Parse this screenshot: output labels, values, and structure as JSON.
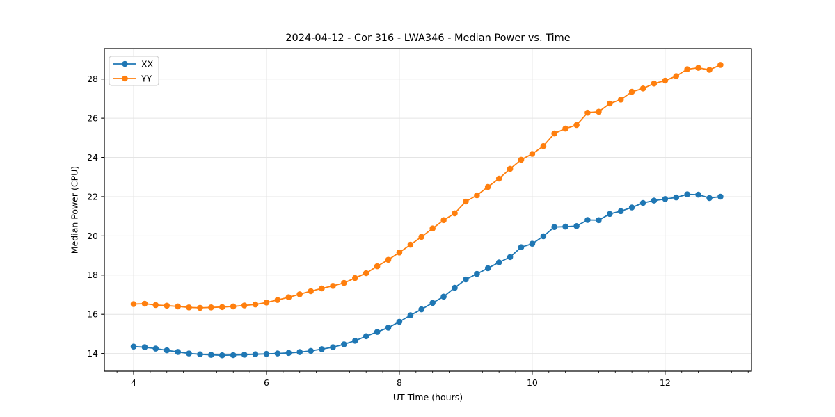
{
  "chart_data": {
    "type": "line",
    "title": "2024-04-12 - Cor 316 - LWA346 - Median Power vs. Time",
    "xlabel": "UT Time (hours)",
    "ylabel": "Median Power (CPU)",
    "xlim": [
      3.56,
      13.3
    ],
    "ylim": [
      13.1,
      29.55
    ],
    "xticks": [
      4,
      6,
      8,
      10,
      12
    ],
    "yticks": [
      14,
      16,
      18,
      20,
      22,
      24,
      26,
      28
    ],
    "x_minor_tick_step": 0.25,
    "grid": true,
    "grid_color": "#e4e4e4",
    "legend_position": "upper-left",
    "x": [
      4.0,
      4.167,
      4.333,
      4.5,
      4.667,
      4.833,
      5.0,
      5.167,
      5.333,
      5.5,
      5.667,
      5.833,
      6.0,
      6.167,
      6.333,
      6.5,
      6.667,
      6.833,
      7.0,
      7.167,
      7.333,
      7.5,
      7.667,
      7.833,
      8.0,
      8.167,
      8.333,
      8.5,
      8.667,
      8.833,
      9.0,
      9.167,
      9.333,
      9.5,
      9.667,
      9.833,
      10.0,
      10.167,
      10.333,
      10.5,
      10.667,
      10.833,
      11.0,
      11.167,
      11.333,
      11.5,
      11.667,
      11.833,
      12.0,
      12.167,
      12.333,
      12.5,
      12.667,
      12.833
    ],
    "series": [
      {
        "name": "XX",
        "color": "#1f77b4",
        "values": [
          14.35,
          14.32,
          14.25,
          14.16,
          14.08,
          14.0,
          13.96,
          13.93,
          13.91,
          13.92,
          13.94,
          13.96,
          13.98,
          14.0,
          14.03,
          14.07,
          14.13,
          14.22,
          14.32,
          14.47,
          14.65,
          14.88,
          15.1,
          15.32,
          15.62,
          15.95,
          16.25,
          16.58,
          16.9,
          17.35,
          17.78,
          18.06,
          18.35,
          18.65,
          18.92,
          19.42,
          19.6,
          19.98,
          20.45,
          20.47,
          20.5,
          20.81,
          20.8,
          21.12,
          21.26,
          21.45,
          21.68,
          21.8,
          21.88,
          21.96,
          22.12,
          22.1,
          21.93,
          22.0
        ]
      },
      {
        "name": "YY",
        "color": "#ff7f0e",
        "values": [
          16.52,
          16.54,
          16.47,
          16.44,
          16.4,
          16.35,
          16.33,
          16.35,
          16.37,
          16.4,
          16.45,
          16.5,
          16.6,
          16.73,
          16.87,
          17.02,
          17.18,
          17.32,
          17.45,
          17.6,
          17.85,
          18.1,
          18.45,
          18.78,
          19.15,
          19.55,
          19.95,
          20.38,
          20.8,
          21.15,
          21.75,
          22.07,
          22.5,
          22.92,
          23.42,
          23.88,
          24.18,
          24.58,
          25.22,
          25.47,
          25.65,
          26.28,
          26.33,
          26.75,
          26.95,
          27.35,
          27.52,
          27.77,
          27.92,
          28.15,
          28.5,
          28.57,
          28.47,
          28.72
        ]
      }
    ]
  }
}
